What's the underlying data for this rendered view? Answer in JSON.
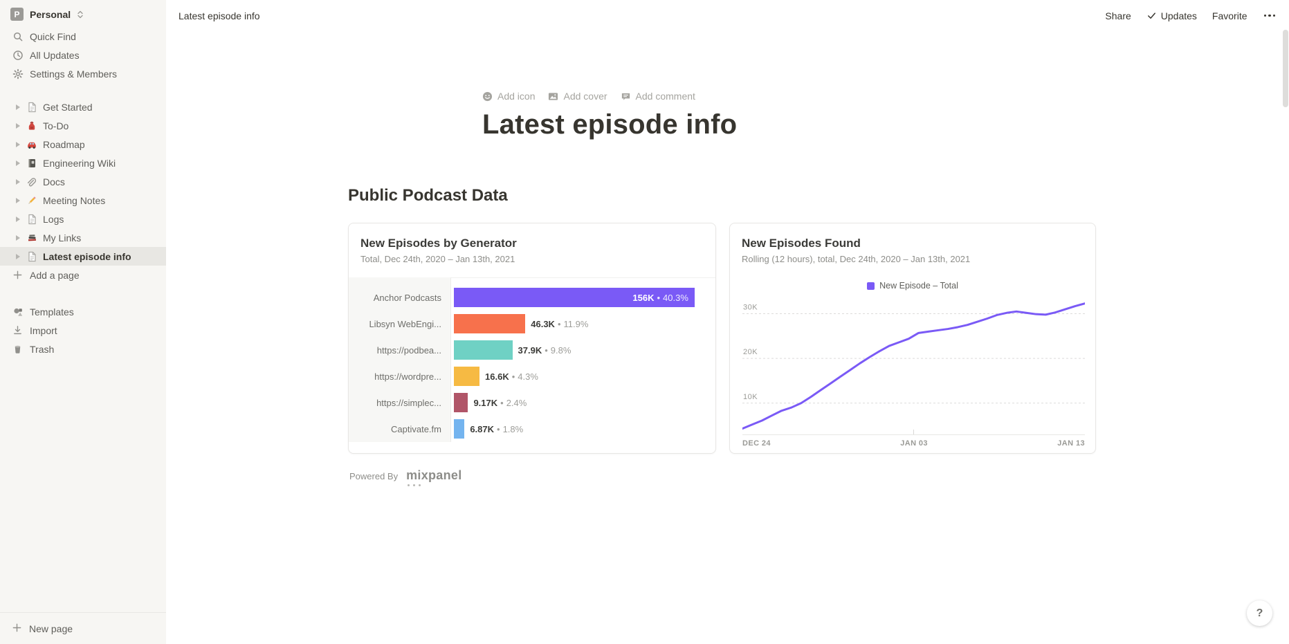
{
  "workspace": {
    "name": "Personal",
    "avatar_letter": "P"
  },
  "sidebar": {
    "top_items": [
      {
        "label": "Quick Find",
        "icon": "search-icon"
      },
      {
        "label": "All Updates",
        "icon": "clock-icon"
      },
      {
        "label": "Settings & Members",
        "icon": "gear-icon"
      }
    ],
    "pages": [
      {
        "label": "Get Started",
        "icon": "page-icon"
      },
      {
        "label": "To-Do",
        "icon": "backpack-icon"
      },
      {
        "label": "Roadmap",
        "icon": "car-icon"
      },
      {
        "label": "Engineering Wiki",
        "icon": "notebook-icon"
      },
      {
        "label": "Docs",
        "icon": "paperclip-icon"
      },
      {
        "label": "Meeting Notes",
        "icon": "pencil-icon"
      },
      {
        "label": "Logs",
        "icon": "page-icon"
      },
      {
        "label": "My Links",
        "icon": "books-icon"
      },
      {
        "label": "Latest episode info",
        "icon": "page-icon",
        "selected": true
      }
    ],
    "add_page_label": "Add a page",
    "bottom_items": [
      {
        "label": "Templates",
        "icon": "templates-icon"
      },
      {
        "label": "Import",
        "icon": "import-icon"
      },
      {
        "label": "Trash",
        "icon": "trash-icon"
      }
    ],
    "new_page_label": "New page"
  },
  "topbar": {
    "breadcrumb": "Latest episode info",
    "share_label": "Share",
    "updates_label": "Updates",
    "favorite_label": "Favorite"
  },
  "page": {
    "add_icon_label": "Add icon",
    "add_cover_label": "Add cover",
    "add_comment_label": "Add comment",
    "title": "Latest episode info",
    "section_heading": "Public Podcast Data",
    "powered_by": "Powered By",
    "powered_by_brand": "mixpanel"
  },
  "help_button": {
    "label": "?"
  },
  "chart_data": [
    {
      "type": "bar",
      "orientation": "horizontal",
      "title": "New Episodes by Generator",
      "subtitle": "Total, Dec 24th, 2020 – Jan 13th, 2021",
      "categories": [
        "Anchor Podcasts",
        "Libsyn WebEngi...",
        "https://podbea...",
        "https://wordpre...",
        "https://simplec...",
        "Captivate.fm"
      ],
      "values": [
        156000,
        46300,
        37900,
        16600,
        9170,
        6870
      ],
      "value_labels": [
        "156K",
        "46.3K",
        "37.9K",
        "16.6K",
        "9.17K",
        "6.87K"
      ],
      "pct_labels": [
        "40.3%",
        "11.9%",
        "9.8%",
        "4.3%",
        "2.4%",
        "1.8%"
      ],
      "colors": [
        "#7a5af6",
        "#f7714c",
        "#6fd1c4",
        "#f6ba43",
        "#b05568",
        "#74b4ef"
      ],
      "separator": "•",
      "xlim": [
        0,
        165000
      ],
      "grid": false,
      "legend_position": "none"
    },
    {
      "type": "line",
      "title": "New Episodes Found",
      "subtitle": "Rolling (12 hours), total, Dec 24th, 2020 – Jan 13th, 2021",
      "series": [
        {
          "name": "New Episode – Total",
          "color": "#7a5af6",
          "values": [
            4300,
            5200,
            6100,
            7200,
            8300,
            9000,
            10000,
            11400,
            12900,
            14400,
            15900,
            17400,
            18900,
            20300,
            21600,
            22800,
            23600,
            24400,
            25700,
            26000,
            26300,
            26600,
            27000,
            27500,
            28200,
            28900,
            29700,
            30200,
            30500,
            30200,
            29900,
            29800,
            30300,
            31000,
            31700,
            32300
          ]
        }
      ],
      "x_ticks": [
        "DEC 24",
        "JAN 03",
        "JAN 13"
      ],
      "y_ticks": [
        {
          "label": "10K",
          "value": 10000
        },
        {
          "label": "20K",
          "value": 20000
        },
        {
          "label": "30K",
          "value": 30000
        }
      ],
      "ylim": [
        3000,
        33800
      ],
      "grid": "horizontal-dashed",
      "legend_position": "top-center"
    }
  ]
}
